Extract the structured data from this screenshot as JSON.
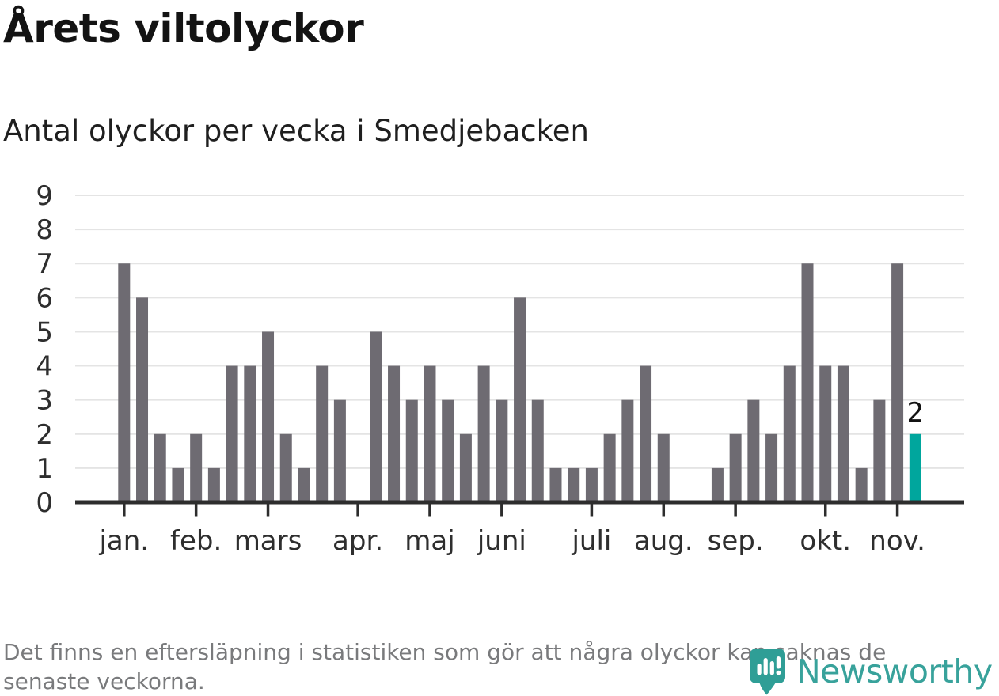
{
  "header": {
    "title": "Årets viltolyckor",
    "subtitle": "Antal olyckor per vecka i Smedjebacken"
  },
  "footer": {
    "note_line1": "Det finns en eftersläpning i statistiken som gör att några olyckor kan saknas de",
    "note_line2": "senaste veckorna."
  },
  "logo": {
    "wordmark": "Newsworthy",
    "icon": "bar-chart-pin-icon"
  },
  "colors": {
    "bar": "#6e6b72",
    "highlight": "#00a69d",
    "grid": "#e4e4e4",
    "axis": "#2d2d2d",
    "title_text": "#131313",
    "axis_text": "#2e2e2e",
    "footer_text": "#797a7c",
    "logo_teal": "#38a29b",
    "pin_teal": "#2f9e96"
  },
  "chart_data": {
    "type": "bar",
    "title": "Årets viltolyckor",
    "subtitle": "Antal olyckor per vecka i Smedjebacken",
    "x_unit": "vecka (week 1–45)",
    "values": [
      7,
      6,
      2,
      1,
      2,
      1,
      4,
      4,
      5,
      2,
      1,
      4,
      3,
      0,
      5,
      4,
      3,
      4,
      3,
      2,
      4,
      3,
      6,
      3,
      1,
      1,
      1,
      2,
      3,
      4,
      2,
      0,
      0,
      1,
      2,
      3,
      2,
      4,
      7,
      4,
      4,
      1,
      3,
      7,
      2
    ],
    "ylim": [
      0,
      9
    ],
    "yticks": [
      0,
      1,
      2,
      3,
      4,
      5,
      6,
      7,
      8,
      9
    ],
    "grid": true,
    "legend_position": "none",
    "month_ticks": [
      {
        "label": "jan.",
        "week": 1
      },
      {
        "label": "feb.",
        "week": 5
      },
      {
        "label": "mars",
        "week": 9
      },
      {
        "label": "apr.",
        "week": 14
      },
      {
        "label": "maj",
        "week": 18
      },
      {
        "label": "juni",
        "week": 22
      },
      {
        "label": "juli",
        "week": 27
      },
      {
        "label": "aug.",
        "week": 31
      },
      {
        "label": "sep.",
        "week": 35
      },
      {
        "label": "okt.",
        "week": 40
      },
      {
        "label": "nov.",
        "week": 44
      }
    ],
    "highlight_last": true,
    "annotation": "2"
  }
}
